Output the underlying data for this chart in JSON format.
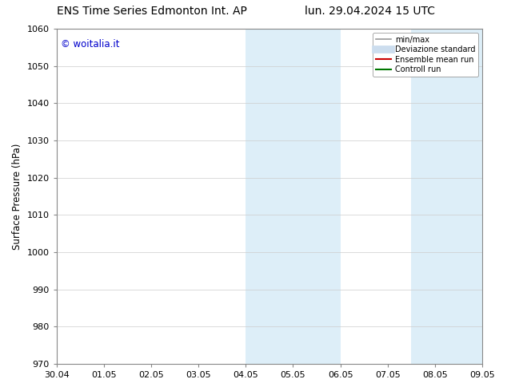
{
  "title_left": "ENS Time Series Edmonton Int. AP",
  "title_right": "lun. 29.04.2024 15 UTC",
  "ylabel": "Surface Pressure (hPa)",
  "ylim": [
    970,
    1060
  ],
  "yticks": [
    970,
    980,
    990,
    1000,
    1010,
    1020,
    1030,
    1040,
    1050,
    1060
  ],
  "xtick_labels": [
    "30.04",
    "01.05",
    "02.05",
    "03.05",
    "04.05",
    "05.05",
    "06.05",
    "07.05",
    "08.05",
    "09.05"
  ],
  "xtick_positions": [
    0,
    1,
    2,
    3,
    4,
    5,
    6,
    7,
    8,
    9
  ],
  "shaded_regions": [
    {
      "xmin": 4,
      "xmax": 6,
      "color": "#ddeef8"
    },
    {
      "xmin": 7.5,
      "xmax": 9,
      "color": "#ddeef8"
    }
  ],
  "watermark_text": "© woitalia.it",
  "watermark_color": "#0000cc",
  "legend_items": [
    {
      "label": "min/max",
      "color": "#999999",
      "lw": 1.2,
      "ls": "-"
    },
    {
      "label": "Deviazione standard",
      "color": "#ccddee",
      "lw": 7,
      "ls": "-"
    },
    {
      "label": "Ensemble mean run",
      "color": "#cc0000",
      "lw": 1.5,
      "ls": "-"
    },
    {
      "label": "Controll run",
      "color": "#007700",
      "lw": 1.5,
      "ls": "-"
    }
  ],
  "bg_color": "#ffffff",
  "grid_color": "#cccccc",
  "title_fontsize": 10,
  "tick_fontsize": 8,
  "ylabel_fontsize": 8.5,
  "watermark_fontsize": 8.5
}
